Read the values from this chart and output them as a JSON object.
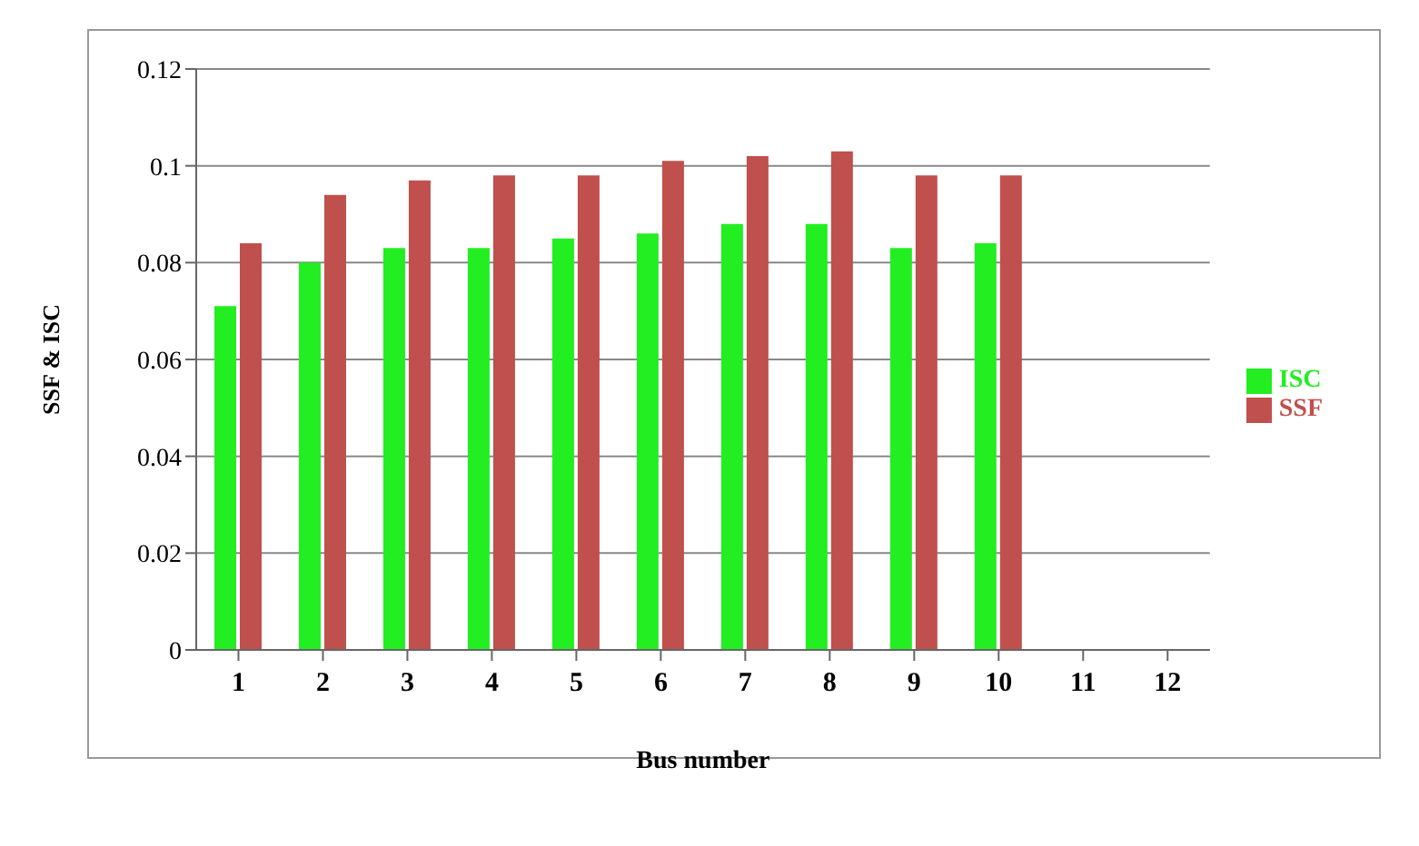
{
  "chart_data": {
    "type": "bar",
    "xlabel": "Bus number",
    "ylabel": "SSF & ISC",
    "x": [
      1,
      2,
      3,
      4,
      5,
      6,
      7,
      8,
      9,
      10
    ],
    "series": [
      {
        "name": "ISC",
        "color": "#22ee22",
        "values": [
          0.071,
          0.08,
          0.083,
          0.083,
          0.085,
          0.086,
          0.088,
          0.088,
          0.083,
          0.084
        ]
      },
      {
        "name": "SSF",
        "color": "#c0504d",
        "values": [
          0.084,
          0.094,
          0.097,
          0.098,
          0.098,
          0.101,
          0.102,
          0.103,
          0.098,
          0.098
        ]
      }
    ],
    "xlim": [
      0.5,
      12.5
    ],
    "xticks": [
      1,
      2,
      3,
      4,
      5,
      6,
      7,
      8,
      9,
      10,
      11,
      12
    ],
    "ylim": [
      0,
      0.12
    ],
    "yticks": [
      0,
      0.02,
      0.04,
      0.06,
      0.08,
      0.1,
      0.12
    ],
    "grid": "y",
    "legend": "right"
  }
}
